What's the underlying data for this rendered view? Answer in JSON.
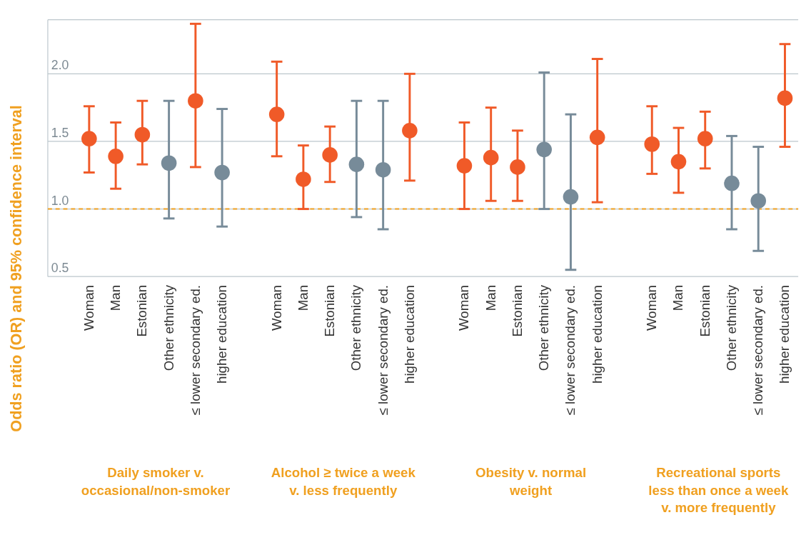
{
  "chart_data": {
    "type": "scatter",
    "ylabel": "Odds ratio (OR) and 95% confidence interval",
    "categories": [
      "Woman",
      "Man",
      "Estonian",
      "Other ethnicity",
      "≤ lower secondary ed.",
      "higher education",
      "Woman",
      "Man",
      "Estonian",
      "Other ethnicity",
      "≤ lower secondary ed.",
      "higher education",
      "Woman",
      "Man",
      "Estonian",
      "Other ethnicity",
      "≤ lower secondary ed.",
      "higher education",
      "Woman",
      "Man",
      "Estonian",
      "Other ethnicity",
      "≤ lower secondary ed.",
      "higher education"
    ],
    "series": [
      {
        "color": "#f05a28",
        "values": [
          1.52,
          1.39,
          1.55,
          null,
          1.8,
          null,
          1.7,
          1.22,
          1.4,
          null,
          null,
          1.58,
          1.32,
          1.38,
          1.31,
          null,
          null,
          1.53,
          1.48,
          1.35,
          1.52,
          null,
          null,
          1.82
        ],
        "errors": [
          [
            1.27,
            1.76
          ],
          [
            1.15,
            1.64
          ],
          [
            1.33,
            1.8
          ],
          null,
          [
            1.31,
            2.37
          ],
          null,
          [
            1.39,
            2.09
          ],
          [
            1.0,
            1.47
          ],
          [
            1.2,
            1.61
          ],
          null,
          null,
          [
            1.21,
            2.0
          ],
          [
            1.0,
            1.64
          ],
          [
            1.06,
            1.75
          ],
          [
            1.06,
            1.58
          ],
          null,
          null,
          [
            1.05,
            2.11
          ],
          [
            1.26,
            1.76
          ],
          [
            1.12,
            1.6
          ],
          [
            1.3,
            1.72
          ],
          null,
          null,
          [
            1.46,
            2.22
          ]
        ]
      },
      {
        "color": "#778b99",
        "values": [
          null,
          null,
          null,
          1.34,
          null,
          1.27,
          null,
          null,
          null,
          1.33,
          1.29,
          null,
          null,
          null,
          null,
          1.44,
          1.09,
          null,
          null,
          null,
          null,
          1.19,
          1.06,
          null
        ],
        "errors": [
          null,
          null,
          null,
          [
            0.93,
            1.8
          ],
          null,
          [
            0.87,
            1.74
          ],
          null,
          null,
          null,
          [
            0.94,
            1.8
          ],
          [
            0.85,
            1.8
          ],
          null,
          null,
          null,
          null,
          [
            1.0,
            2.01
          ],
          [
            0.55,
            1.7
          ],
          null,
          null,
          null,
          null,
          [
            0.85,
            1.54
          ],
          [
            0.69,
            1.46
          ],
          null
        ]
      }
    ],
    "ylim": [
      0.5,
      2.4
    ],
    "yticks": [
      {
        "value": 0.5,
        "label": "0.5"
      },
      {
        "value": 1,
        "label": "1.0"
      },
      {
        "value": 1.5,
        "label": "1.5"
      },
      {
        "value": 2,
        "label": "2.0"
      }
    ],
    "grid": "y",
    "marker": "circle",
    "ref_lines": [
      {
        "axis": "y",
        "value": 1,
        "color": "#f0a020",
        "line_style": "dashed"
      }
    ],
    "annotations": [
      "Daily smoker v. occasional/non-smoker",
      "Alcohol ≥ twice a week v. less frequently",
      "Obesity v. normal weight",
      "Recreational sports less than once a week v. more frequently"
    ]
  }
}
